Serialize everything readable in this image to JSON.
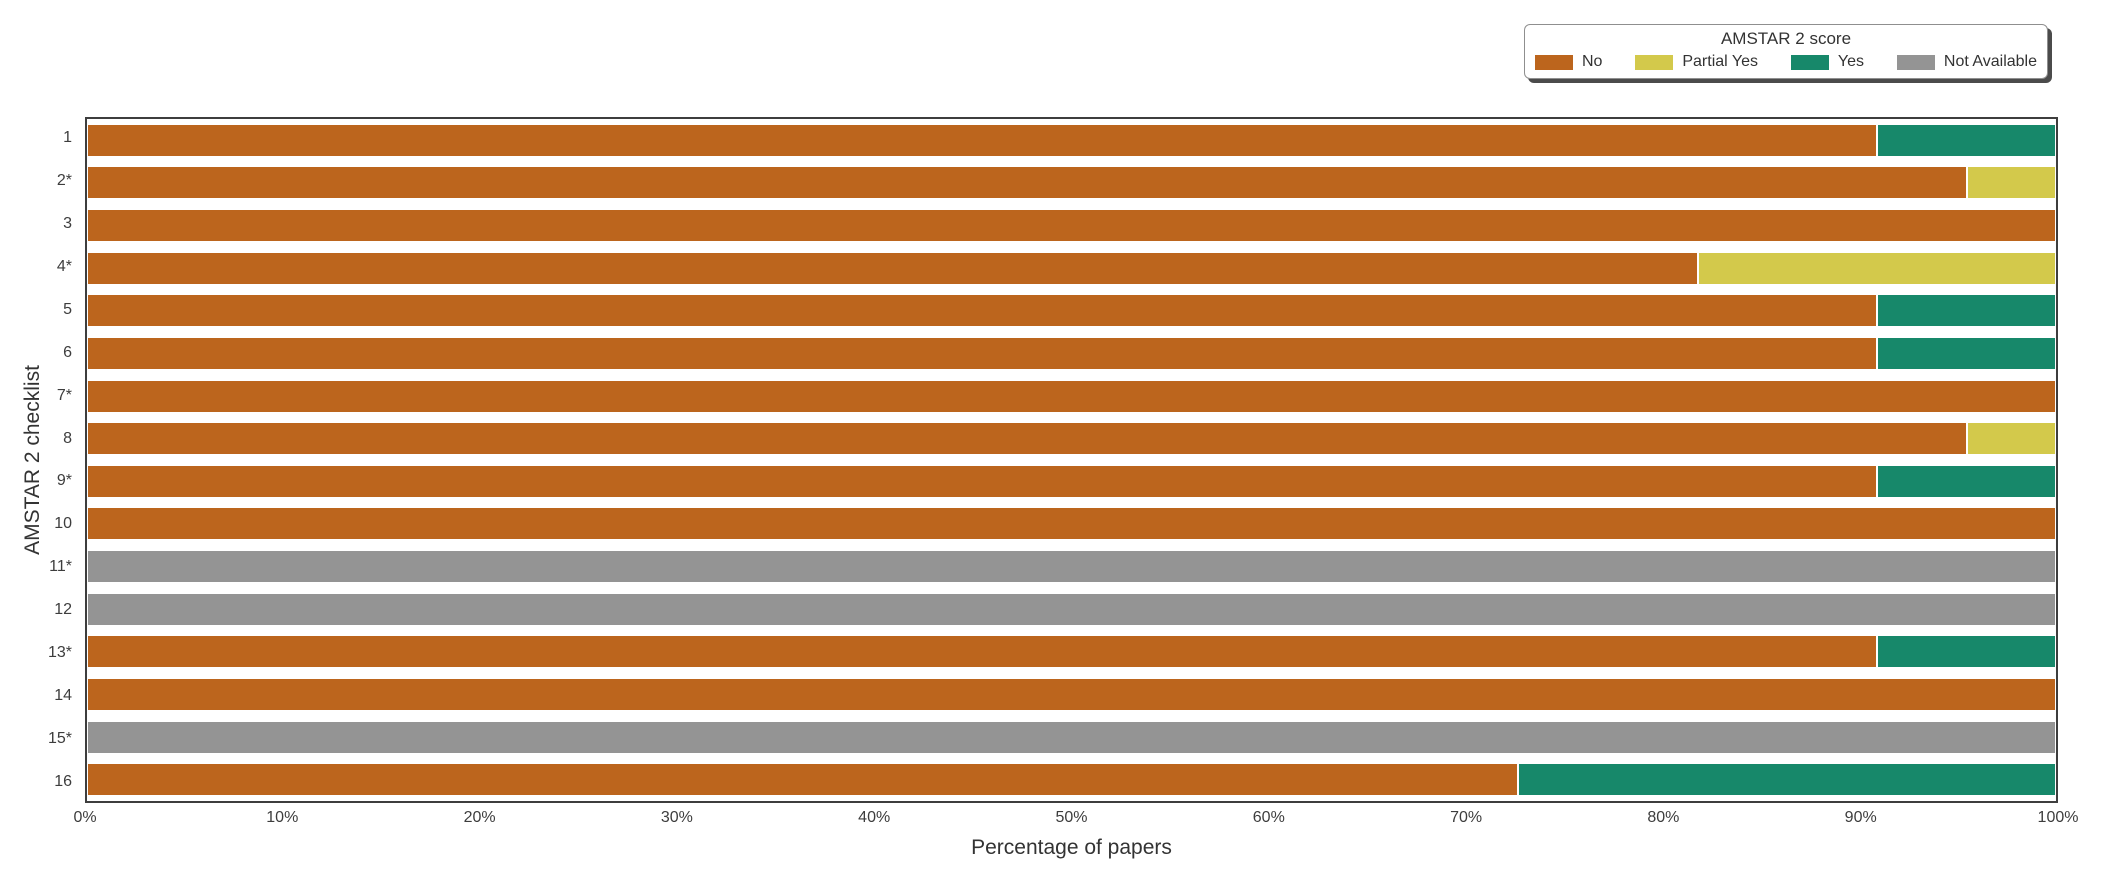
{
  "chart_data": {
    "type": "bar",
    "orientation": "horizontal",
    "stacked": true,
    "title": "",
    "xlabel": "Percentage of papers",
    "ylabel": "AMSTAR 2 checklist",
    "xlim": [
      0,
      100
    ],
    "x_tick_labels": [
      "0%",
      "10%",
      "20%",
      "30%",
      "40%",
      "50%",
      "60%",
      "70%",
      "80%",
      "90%",
      "100%"
    ],
    "categories": [
      "1",
      "2*",
      "3",
      "4*",
      "5",
      "6",
      "7*",
      "8",
      "9*",
      "10",
      "11*",
      "12",
      "13*",
      "14",
      "15*",
      "16"
    ],
    "series": [
      {
        "name": "No",
        "color": "#BC651D",
        "values": [
          90.9,
          95.5,
          100,
          81.8,
          90.9,
          90.9,
          100,
          95.5,
          90.9,
          100,
          0,
          0,
          90.9,
          100,
          0,
          72.7
        ]
      },
      {
        "name": "Partial Yes",
        "color": "#D3C94B",
        "values": [
          0,
          4.5,
          0,
          18.2,
          0,
          0,
          0,
          4.5,
          0,
          0,
          0,
          0,
          0,
          0,
          0,
          0
        ]
      },
      {
        "name": "Yes",
        "color": "#17886A",
        "values": [
          9.1,
          0,
          0,
          0,
          9.1,
          9.1,
          0,
          0,
          9.1,
          0,
          0,
          0,
          9.1,
          0,
          0,
          27.3
        ]
      },
      {
        "name": "Not Available",
        "color": "#949494",
        "values": [
          0,
          0,
          0,
          0,
          0,
          0,
          0,
          0,
          0,
          0,
          100,
          100,
          0,
          0,
          100,
          0
        ]
      }
    ],
    "legend": {
      "title": "AMSTAR 2 score",
      "position": "top-right",
      "entries": [
        "No",
        "Partial Yes",
        "Yes",
        "Not Available"
      ]
    },
    "grid": false,
    "frame_color": "#3E3E3E",
    "background_color": "#FFFFFF"
  }
}
